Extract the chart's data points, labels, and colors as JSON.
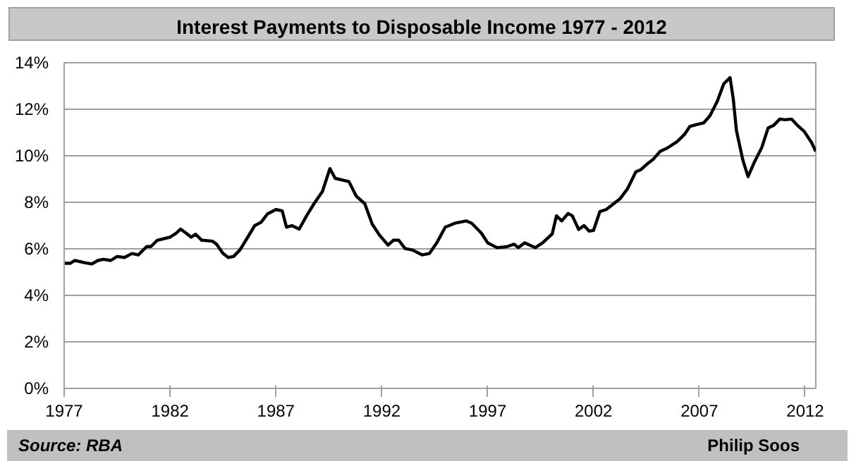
{
  "chart_data": {
    "type": "line",
    "title": "Interest Payments to Disposable Income 1977 - 2012",
    "annotations": [
      "Source: RBA",
      "Philip Soos"
    ],
    "series": [
      {
        "color": "#000000",
        "x": [
          1977.0,
          1977.3,
          1977.5,
          1978.0,
          1978.3,
          1978.6,
          1978.85,
          1979.2,
          1979.5,
          1979.85,
          1980.2,
          1980.5,
          1980.9,
          1981.1,
          1981.4,
          1982.0,
          1982.3,
          1982.5,
          1982.75,
          1983.0,
          1983.2,
          1983.5,
          1984.0,
          1984.2,
          1984.5,
          1984.75,
          1985.0,
          1985.3,
          1985.65,
          1986.0,
          1986.3,
          1986.6,
          1987.0,
          1987.3,
          1987.5,
          1987.75,
          1988.1,
          1988.45,
          1988.8,
          1989.2,
          1989.55,
          1989.8,
          1990.45,
          1990.8,
          1991.2,
          1991.55,
          1991.9,
          1992.3,
          1992.55,
          1992.8,
          1993.1,
          1993.45,
          1993.9,
          1994.25,
          1994.6,
          1995.0,
          1995.45,
          1996.0,
          1996.25,
          1996.7,
          1997.0,
          1997.45,
          1997.9,
          1998.25,
          1998.45,
          1998.75,
          1999.25,
          1999.6,
          2000.05,
          2000.25,
          2000.5,
          2000.8,
          2001.0,
          2001.3,
          2001.55,
          2001.8,
          2002.0,
          2002.3,
          2002.6,
          2002.9,
          2003.25,
          2003.6,
          2004.0,
          2004.25,
          2004.55,
          2004.8,
          2005.15,
          2005.5,
          2005.95,
          2006.3,
          2006.55,
          2006.85,
          2007.2,
          2007.5,
          2007.85,
          2008.15,
          2008.45,
          2008.6,
          2008.75,
          2009.05,
          2009.3,
          2009.6,
          2009.95,
          2010.25,
          2010.5,
          2010.8,
          2011.05,
          2011.35,
          2011.6,
          2011.95,
          2012.3,
          2012.5
        ],
        "values": [
          5.38,
          5.38,
          5.5,
          5.4,
          5.35,
          5.5,
          5.55,
          5.5,
          5.67,
          5.63,
          5.8,
          5.74,
          6.1,
          6.1,
          6.37,
          6.5,
          6.68,
          6.85,
          6.68,
          6.5,
          6.63,
          6.37,
          6.33,
          6.2,
          5.8,
          5.63,
          5.67,
          5.95,
          6.47,
          7.0,
          7.14,
          7.5,
          7.69,
          7.63,
          6.93,
          7.0,
          6.85,
          7.42,
          7.94,
          8.47,
          9.45,
          9.03,
          8.89,
          8.26,
          7.94,
          7.06,
          6.58,
          6.16,
          6.37,
          6.37,
          6.01,
          5.95,
          5.74,
          5.8,
          6.26,
          6.93,
          7.1,
          7.2,
          7.1,
          6.68,
          6.26,
          6.05,
          6.09,
          6.2,
          6.05,
          6.26,
          6.05,
          6.26,
          6.64,
          7.42,
          7.2,
          7.52,
          7.42,
          6.83,
          7.0,
          6.76,
          6.79,
          7.6,
          7.69,
          7.9,
          8.15,
          8.57,
          9.31,
          9.41,
          9.66,
          9.83,
          10.19,
          10.34,
          10.61,
          10.92,
          11.26,
          11.34,
          11.41,
          11.72,
          12.35,
          13.09,
          13.36,
          12.46,
          11.09,
          9.83,
          9.1,
          9.73,
          10.36,
          11.2,
          11.3,
          11.58,
          11.55,
          11.58,
          11.34,
          11.05,
          10.57,
          10.19
        ]
      }
    ],
    "xlim": [
      1977,
      2012.5
    ],
    "xticks": [
      1977,
      1982,
      1987,
      1992,
      1997,
      2002,
      2007,
      2012
    ],
    "ylim": [
      0,
      14
    ],
    "yticks": [
      {
        "value": 0,
        "label": "0%"
      },
      {
        "value": 2,
        "label": "2%"
      },
      {
        "value": 4,
        "label": "4%"
      },
      {
        "value": 6,
        "label": "6%"
      },
      {
        "value": 8,
        "label": "8%"
      },
      {
        "value": 10,
        "label": "10%"
      },
      {
        "value": 12,
        "label": "12%"
      },
      {
        "value": 14,
        "label": "14%"
      }
    ],
    "grid": "y",
    "marker": "none",
    "line_style": "solid"
  }
}
